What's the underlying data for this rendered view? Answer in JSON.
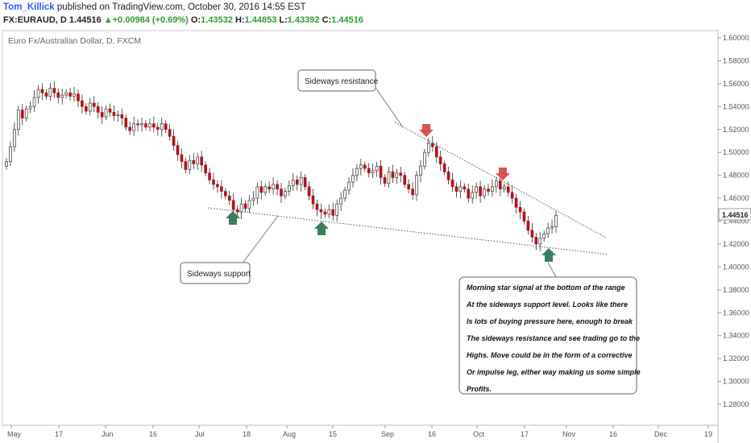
{
  "header": {
    "author": "Tom_Killick",
    "published_text": " published on TradingView.com, October 30, 2016 14:55 EST",
    "symbol": "FX:EURAUD, D",
    "last_price": "1.44516",
    "change_arrow": "▲",
    "change": "+0.00984 (+0.69%)",
    "open_label": "O:",
    "open": "1.43532",
    "high_label": "H:",
    "high": "1.44853",
    "low_label": "L:",
    "low": "1.43392",
    "close_label": "C:",
    "close": "1.44516"
  },
  "colors": {
    "up_candle": "#ffffff",
    "down_candle": "#b5121b",
    "wick": "#333333",
    "up_arrow": "#3a7d5c",
    "down_arrow": "#d9534f",
    "price_marker_text": "#222222",
    "trendline": "#555555"
  },
  "chart_data": {
    "type": "candlestick",
    "title": "Euro Fx/Australian Dollar, D, FXCM",
    "ylim": [
      1.27,
      1.605
    ],
    "y_ticks": [
      "1.60000",
      "1.58000",
      "1.56000",
      "1.54000",
      "1.52000",
      "1.50000",
      "1.48000",
      "1.46000",
      "1.44000",
      "1.42000",
      "1.40000",
      "1.38000",
      "1.36000",
      "1.34000",
      "1.32000",
      "1.30000",
      "1.28000"
    ],
    "x_ticks": [
      "May",
      "17",
      "Jun",
      "16",
      "Jul",
      "18",
      "Aug",
      "15",
      "Sep",
      "16",
      "Oct",
      "17",
      "Nov",
      "16",
      "Dec",
      "19"
    ],
    "last_price_marker": "1.44516",
    "grid": false,
    "annotations": {
      "resistance_label": "Sideways resistance",
      "support_label": "Sideways support",
      "note_lines": [
        "Morning star signal at the bottom of the range",
        "At the sideways support level. Looks like there",
        "Is lots of buying pressure here, enough to break",
        "The sideways resistance and see trading go to the",
        "Highs. Move could be in the form of a corrective",
        "Or impulse leg, either way making us some simple",
        "Profits."
      ]
    },
    "candles_close": [
      1.492,
      1.505,
      1.52,
      1.537,
      1.53,
      1.538,
      1.54,
      1.548,
      1.555,
      1.552,
      1.549,
      1.556,
      1.552,
      1.548,
      1.55,
      1.552,
      1.549,
      1.551,
      1.545,
      1.54,
      1.536,
      1.543,
      1.54,
      1.535,
      1.531,
      1.538,
      1.535,
      1.532,
      1.533,
      1.53,
      1.522,
      1.519,
      1.525,
      1.524,
      1.525,
      1.522,
      1.525,
      1.522,
      1.52,
      1.525,
      1.52,
      1.514,
      1.506,
      1.498,
      1.492,
      1.485,
      1.493,
      1.49,
      1.496,
      1.489,
      1.482,
      1.476,
      1.472,
      1.47,
      1.466,
      1.462,
      1.458,
      1.45,
      1.448,
      1.455,
      1.451,
      1.458,
      1.46,
      1.47,
      1.465,
      1.47,
      1.468,
      1.472,
      1.468,
      1.462,
      1.466,
      1.471,
      1.476,
      1.472,
      1.478,
      1.47,
      1.462,
      1.455,
      1.45,
      1.448,
      1.446,
      1.45,
      1.445,
      1.455,
      1.46,
      1.467,
      1.474,
      1.48,
      1.486,
      1.489,
      1.486,
      1.482,
      1.484,
      1.488,
      1.478,
      1.473,
      1.483,
      1.478,
      1.482,
      1.48,
      1.472,
      1.468,
      1.463,
      1.48,
      1.488,
      1.5,
      1.508,
      1.505,
      1.496,
      1.49,
      1.483,
      1.476,
      1.47,
      1.466,
      1.47,
      1.468,
      1.46,
      1.465,
      1.47,
      1.462,
      1.468,
      1.466,
      1.47,
      1.475,
      1.468,
      1.47,
      1.465,
      1.46,
      1.452,
      1.448,
      1.44,
      1.432,
      1.426,
      1.42,
      1.425,
      1.429,
      1.434,
      1.435,
      1.445
    ],
    "candles_open": [
      1.488,
      1.492,
      1.505,
      1.52,
      1.537,
      1.53,
      1.538,
      1.54,
      1.548,
      1.555,
      1.552,
      1.549,
      1.556,
      1.552,
      1.548,
      1.55,
      1.552,
      1.549,
      1.551,
      1.545,
      1.54,
      1.536,
      1.543,
      1.54,
      1.535,
      1.531,
      1.538,
      1.535,
      1.532,
      1.533,
      1.53,
      1.522,
      1.519,
      1.525,
      1.524,
      1.525,
      1.522,
      1.525,
      1.522,
      1.52,
      1.525,
      1.52,
      1.514,
      1.506,
      1.498,
      1.492,
      1.485,
      1.493,
      1.49,
      1.496,
      1.489,
      1.482,
      1.476,
      1.472,
      1.47,
      1.466,
      1.462,
      1.458,
      1.45,
      1.448,
      1.455,
      1.451,
      1.458,
      1.46,
      1.47,
      1.465,
      1.47,
      1.468,
      1.472,
      1.468,
      1.462,
      1.466,
      1.471,
      1.476,
      1.472,
      1.478,
      1.47,
      1.462,
      1.455,
      1.45,
      1.448,
      1.446,
      1.45,
      1.445,
      1.455,
      1.46,
      1.467,
      1.474,
      1.48,
      1.486,
      1.489,
      1.486,
      1.482,
      1.484,
      1.488,
      1.478,
      1.473,
      1.483,
      1.478,
      1.482,
      1.48,
      1.472,
      1.468,
      1.463,
      1.48,
      1.488,
      1.5,
      1.508,
      1.505,
      1.496,
      1.49,
      1.483,
      1.476,
      1.47,
      1.466,
      1.47,
      1.468,
      1.46,
      1.465,
      1.47,
      1.462,
      1.468,
      1.466,
      1.47,
      1.475,
      1.468,
      1.47,
      1.465,
      1.46,
      1.452,
      1.448,
      1.44,
      1.432,
      1.426,
      1.42,
      1.425,
      1.429,
      1.434,
      1.435
    ]
  }
}
